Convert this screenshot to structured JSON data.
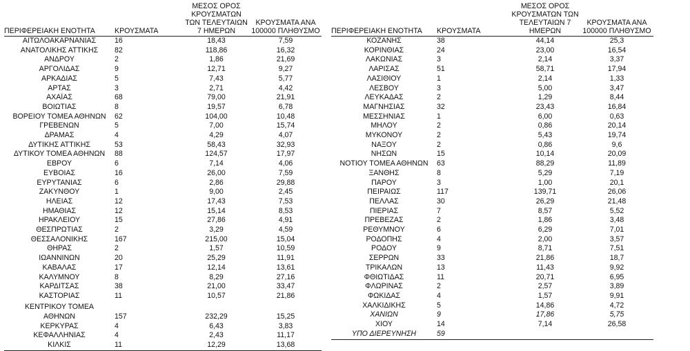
{
  "headers": {
    "left": {
      "region": "ΠΕΡΙΦΕΡΕΙΑΚΗ ΕΝΟΤΗΤΑ",
      "cases": "ΚΡΟΥΣΜΑΤΑ",
      "avg_7d": "ΜΕΣΟΣ ΟΡΟΣ ΚΡΟΥΣΜΑΤΩΝ ΤΩΝ ΤΕΛΕΥΤΑΙΩΝ 7 ΗΜΕΡΩΝ",
      "per_100k": "ΚΡΟΥΣΜΑΤΑ ΑΝΑ 100000 ΠΛΗΘΥΣΜΟ"
    },
    "right": {
      "region": "ΠΕΡΙΦΕΡΕΙΑΚΗ ΕΝΟΤΗΤΑ",
      "cases": "ΚΡΟΥΣΜΑΤΑ",
      "avg_7d": "ΜΕΣΟΣ ΟΡΟΣ ΚΡΟΥΣΜΑΤΩΝ ΤΩΝ ΤΕΛΕΥΤΑΙΩΝ 7 ΗΜΕΡΩΝ",
      "per_100k": "ΚΡΟΥΣΜΑΤΑ ΑΝΑ 100000 ΠΛΗΘΥΣΜΟ"
    }
  },
  "left_rows": [
    {
      "name": "ΑΙΤΩΛΟΑΚΑΡΝΑΝΙΑΣ",
      "cases": "16",
      "avg": "18,43",
      "rate": "7,59"
    },
    {
      "name": "ΑΝΑΤΟΛΙΚΗΣ ΑΤΤΙΚΗΣ",
      "cases": "82",
      "avg": "118,86",
      "rate": "16,32"
    },
    {
      "name": "ΑΝΔΡΟΥ",
      "cases": "2",
      "avg": "1,86",
      "rate": "21,69"
    },
    {
      "name": "ΑΡΓΟΛΙΔΑΣ",
      "cases": "9",
      "avg": "12,71",
      "rate": "9,27"
    },
    {
      "name": "ΑΡΚΑΔΙΑΣ",
      "cases": "5",
      "avg": "7,43",
      "rate": "5,77"
    },
    {
      "name": "ΑΡΤΑΣ",
      "cases": "3",
      "avg": "2,71",
      "rate": "4,42"
    },
    {
      "name": "ΑΧΑΪΑΣ",
      "cases": "68",
      "avg": "79,00",
      "rate": "21,91"
    },
    {
      "name": "ΒΟΙΩΤΙΑΣ",
      "cases": "8",
      "avg": "19,57",
      "rate": "6,78"
    },
    {
      "name": "ΒΟΡΕΙΟΥ ΤΟΜΕΑ ΑΘΗΝΩΝ",
      "cases": "62",
      "avg": "104,00",
      "rate": "10,48"
    },
    {
      "name": "ΓΡΕΒΕΝΩΝ",
      "cases": "5",
      "avg": "7,00",
      "rate": "15,74"
    },
    {
      "name": "ΔΡΑΜΑΣ",
      "cases": "4",
      "avg": "4,29",
      "rate": "4,07"
    },
    {
      "name": "ΔΥΤΙΚΗΣ ΑΤΤΙΚΗΣ",
      "cases": "53",
      "avg": "58,43",
      "rate": "32,93"
    },
    {
      "name": "ΔΥΤΙΚΟΥ ΤΟΜΕΑ ΑΘΗΝΩΝ",
      "cases": "88",
      "avg": "124,57",
      "rate": "17,97"
    },
    {
      "name": "ΕΒΡΟΥ",
      "cases": "6",
      "avg": "7,14",
      "rate": "4,06"
    },
    {
      "name": "ΕΥΒΟΙΑΣ",
      "cases": "16",
      "avg": "26,00",
      "rate": "7,59"
    },
    {
      "name": "ΕΥΡΥΤΑΝΙΑΣ",
      "cases": "6",
      "avg": "2,86",
      "rate": "29,88"
    },
    {
      "name": "ΖΑΚΥΝΘΟΥ",
      "cases": "1",
      "avg": "9,00",
      "rate": "2,45"
    },
    {
      "name": "ΗΛΕΙΑΣ",
      "cases": "12",
      "avg": "17,43",
      "rate": "7,53"
    },
    {
      "name": "ΗΜΑΘΙΑΣ",
      "cases": "12",
      "avg": "15,14",
      "rate": "8,53"
    },
    {
      "name": "ΗΡΑΚΛΕΙΟΥ",
      "cases": "15",
      "avg": "27,86",
      "rate": "4,91"
    },
    {
      "name": "ΘΕΣΠΡΩΤΙΑΣ",
      "cases": "2",
      "avg": "3,29",
      "rate": "4,59"
    },
    {
      "name": "ΘΕΣΣΑΛΟΝΙΚΗΣ",
      "cases": "167",
      "avg": "215,00",
      "rate": "15,04"
    },
    {
      "name": "ΘΗΡΑΣ",
      "cases": "2",
      "avg": "1,57",
      "rate": "10,59"
    },
    {
      "name": "ΙΩΑΝΝΙΝΩΝ",
      "cases": "20",
      "avg": "25,29",
      "rate": "11,91"
    },
    {
      "name": "ΚΑΒΑΛΑΣ",
      "cases": "17",
      "avg": "12,14",
      "rate": "13,61"
    },
    {
      "name": "ΚΑΛΥΜΝΟΥ",
      "cases": "8",
      "avg": "8,29",
      "rate": "27,16"
    },
    {
      "name": "ΚΑΡΔΙΤΣΑΣ",
      "cases": "38",
      "avg": "21,00",
      "rate": "33,47"
    },
    {
      "name": "ΚΑΣΤΟΡΙΑΣ",
      "cases": "11",
      "avg": "10,57",
      "rate": "21,86"
    },
    {
      "name": "ΚΕΝΤΡΙΚΟΥ ΤΟΜΕΑ",
      "name2": "ΑΘΗΝΩΝ",
      "cases": "157",
      "avg": "232,29",
      "rate": "15,25"
    },
    {
      "name": "ΚΕΡΚΥΡΑΣ",
      "cases": "4",
      "avg": "6,43",
      "rate": "3,83"
    },
    {
      "name": "ΚΕΦΑΛΛΗΝΙΑΣ",
      "cases": "4",
      "avg": "2,43",
      "rate": "11,17"
    },
    {
      "name": "ΚΙΛΚΙΣ",
      "cases": "11",
      "avg": "12,29",
      "rate": "13,68"
    }
  ],
  "right_rows": [
    {
      "name": "ΚΟΖΑΝΗΣ",
      "cases": "38",
      "avg": "44,14",
      "rate": "25,3"
    },
    {
      "name": "ΚΟΡΙΝΘΙΑΣ",
      "cases": "24",
      "avg": "23,00",
      "rate": "16,54"
    },
    {
      "name": "ΛΑΚΩΝΙΑΣ",
      "cases": "3",
      "avg": "2,14",
      "rate": "3,37"
    },
    {
      "name": "ΛΑΡΙΣΑΣ",
      "cases": "51",
      "avg": "58,71",
      "rate": "17,94"
    },
    {
      "name": "ΛΑΣΙΘΙΟΥ",
      "cases": "1",
      "avg": "2,14",
      "rate": "1,33"
    },
    {
      "name": "ΛΕΣΒΟΥ",
      "cases": "3",
      "avg": "5,00",
      "rate": "3,47"
    },
    {
      "name": "ΛΕΥΚΑΔΑΣ",
      "cases": "2",
      "avg": "1,29",
      "rate": "8,44"
    },
    {
      "name": "ΜΑΓΝΗΣΙΑΣ",
      "cases": "32",
      "avg": "23,43",
      "rate": "16,84"
    },
    {
      "name": "ΜΕΣΣΗΝΙΑΣ",
      "cases": "1",
      "avg": "6,00",
      "rate": "0,63"
    },
    {
      "name": "ΜΗΛΟΥ",
      "cases": "2",
      "avg": "0,86",
      "rate": "20,14"
    },
    {
      "name": "ΜΥΚΟΝΟΥ",
      "cases": "2",
      "avg": "5,43",
      "rate": "19,74"
    },
    {
      "name": "ΝΑΞΟΥ",
      "cases": "2",
      "avg": "0,86",
      "rate": "9,6"
    },
    {
      "name": "ΝΗΣΩΝ",
      "cases": "15",
      "avg": "10,14",
      "rate": "20,09"
    },
    {
      "name": "ΝΟΤΙΟΥ ΤΟΜΕΑ ΑΘΗΝΩΝ",
      "cases": "63",
      "avg": "88,29",
      "rate": "11,89"
    },
    {
      "name": "ΞΑΝΘΗΣ",
      "cases": "8",
      "avg": "5,29",
      "rate": "7,19"
    },
    {
      "name": "ΠΑΡΟΥ",
      "cases": "3",
      "avg": "1,00",
      "rate": "20,1"
    },
    {
      "name": "ΠΕΙΡΑΙΩΣ",
      "cases": "117",
      "avg": "139,71",
      "rate": "26,06"
    },
    {
      "name": "ΠΕΛΛΑΣ",
      "cases": "30",
      "avg": "26,29",
      "rate": "21,48"
    },
    {
      "name": "ΠΙΕΡΙΑΣ",
      "cases": "7",
      "avg": "8,57",
      "rate": "5,52"
    },
    {
      "name": "ΠΡΕΒΕΖΑΣ",
      "cases": "2",
      "avg": "1,86",
      "rate": "3,48"
    },
    {
      "name": "ΡΕΘΥΜΝΟΥ",
      "cases": "6",
      "avg": "6,29",
      "rate": "7,01"
    },
    {
      "name": "ΡΟΔΟΠΗΣ",
      "cases": "4",
      "avg": "2,00",
      "rate": "3,57"
    },
    {
      "name": "ΡΟΔΟΥ",
      "cases": "9",
      "avg": "8,71",
      "rate": "7,51"
    },
    {
      "name": "ΣΕΡΡΩΝ",
      "cases": "33",
      "avg": "21,86",
      "rate": "18,7"
    },
    {
      "name": "ΤΡΙΚΑΛΩΝ",
      "cases": "13",
      "avg": "11,43",
      "rate": "9,92"
    },
    {
      "name": "ΦΘΙΩΤΙΔΑΣ",
      "cases": "11",
      "avg": "20,71",
      "rate": "6,95"
    },
    {
      "name": "ΦΛΩΡΙΝΑΣ",
      "cases": "2",
      "avg": "2,57",
      "rate": "3,89"
    },
    {
      "name": "ΦΩΚΙΔΑΣ",
      "cases": "4",
      "avg": "1,57",
      "rate": "9,91"
    },
    {
      "name": "ΧΑΛΚΙΔΙΚΗΣ",
      "cases": "5",
      "avg": "14,86",
      "rate": "4,72"
    },
    {
      "name": "ΧΑΝΙΩΝ",
      "cases": "9",
      "avg": "17,86",
      "rate": "5,75",
      "italic": true
    },
    {
      "name": "ΧΙΟΥ",
      "cases": "14",
      "avg": "7,14",
      "rate": "26,58"
    },
    {
      "name": "ΥΠΟ ΔΙΕΡΕΥΝΗΣΗ",
      "cases": "59",
      "avg": "",
      "rate": "",
      "italic": true
    }
  ]
}
